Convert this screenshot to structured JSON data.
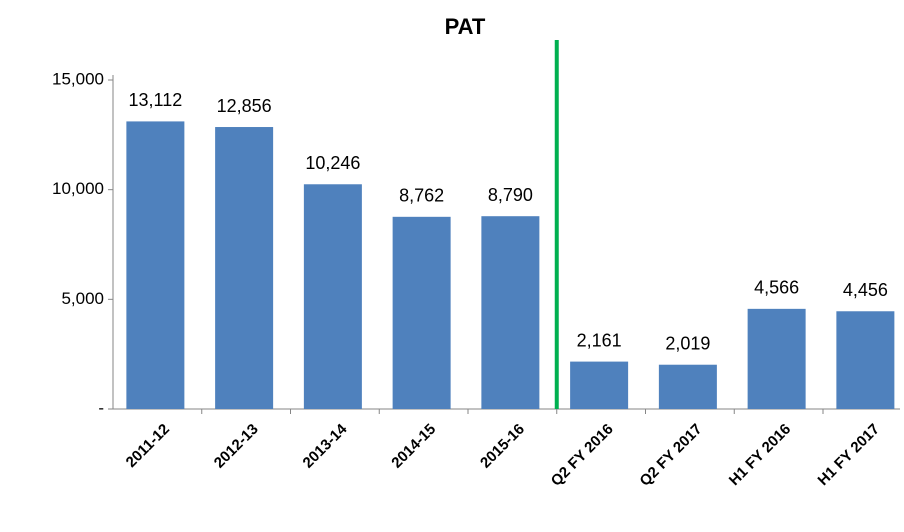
{
  "chart_data": {
    "type": "bar",
    "title": "PAT",
    "categories": [
      "2011-12",
      "2012-13",
      "2013-14",
      "2014-15",
      "2015-16",
      "Q2 FY 2016",
      "Q2 FY 2017",
      "H1 FY 2016",
      "H1 FY 2017"
    ],
    "values": [
      13112,
      12856,
      10246,
      8762,
      8790,
      2161,
      2019,
      4566,
      4456
    ],
    "value_labels": [
      "13,112",
      "12,856",
      "10,246",
      "8,762",
      "8,790",
      "2,161",
      "2,019",
      "4,566",
      "4,456"
    ],
    "color": "#4f81bd",
    "ylim": [
      0,
      15000
    ],
    "yticks": [
      {
        "value": 0,
        "label": "-"
      },
      {
        "value": 5000,
        "label": "5,000"
      },
      {
        "value": 10000,
        "label": "10,000"
      },
      {
        "value": 15000,
        "label": "15,000"
      }
    ],
    "grid": false
  }
}
